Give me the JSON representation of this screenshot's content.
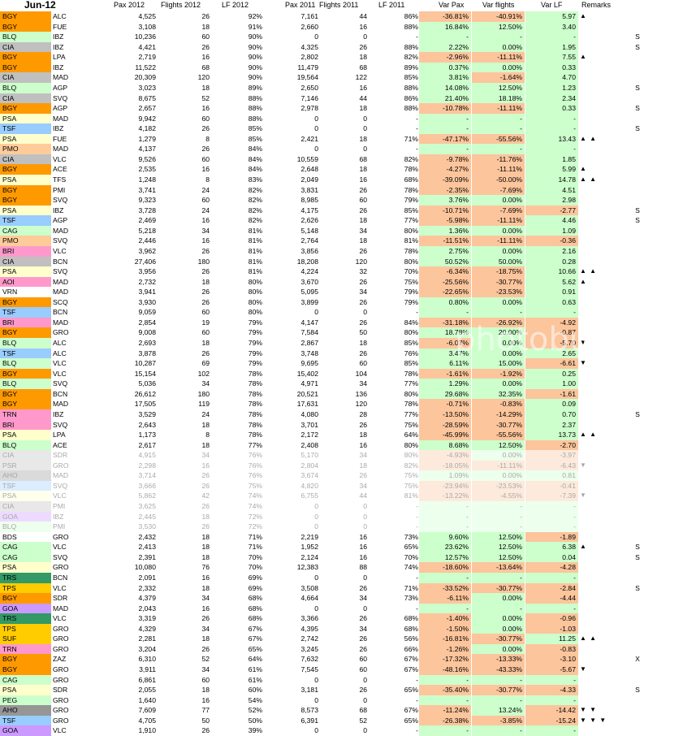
{
  "header": {
    "title": "Jun-12",
    "columns": [
      "Pax 2012",
      "Flights 2012",
      "LF 2012",
      "Pax 2011",
      "Flights 2011",
      "LF 2011",
      "Var Pax",
      "Var flights",
      "Var LF",
      "Remarks"
    ]
  },
  "colors": {
    "BGY": "#ff9900",
    "CIA": "#c0c0c0",
    "BLQ": "#ccffcc",
    "PSA": "#ffffcc",
    "TSF": "#99ccff",
    "PMO": "#ffcc99",
    "CAG": "#ccffcc",
    "BRI": "#ff99cc",
    "AOI": "#ff99cc",
    "VRN": "#ffffff",
    "TRN": "#ff99cc",
    "PSR": "#c0c0c0",
    "AHO": "#969696",
    "GOA": "#cc99ff",
    "BDS": "#ffffff",
    "TRS": "#339966",
    "TPS": "#ffcc00",
    "SUF": "#ffcc00",
    "PEG": "#ccffcc"
  },
  "rows": [
    [
      "BGY",
      "ALC",
      "4,525",
      "26",
      "92%",
      "7,161",
      "44",
      "86%",
      "-36.81%",
      "-40.91%",
      "5.97",
      "▲",
      ""
    ],
    [
      "BGY",
      "FUE",
      "3,108",
      "18",
      "91%",
      "2,660",
      "16",
      "88%",
      "16.84%",
      "12.50%",
      "3.40",
      "",
      ""
    ],
    [
      "BLQ",
      "IBZ",
      "10,236",
      "60",
      "90%",
      "0",
      "0",
      "-",
      "-",
      "-",
      "-",
      "",
      "S"
    ],
    [
      "CIA",
      "IBZ",
      "4,421",
      "26",
      "90%",
      "4,325",
      "26",
      "88%",
      "2.22%",
      "0.00%",
      "1.95",
      "",
      "S"
    ],
    [
      "BGY",
      "LPA",
      "2,719",
      "16",
      "90%",
      "2,802",
      "18",
      "82%",
      "-2.96%",
      "-11.11%",
      "7.55",
      "▲",
      ""
    ],
    [
      "BGY",
      "IBZ",
      "11,522",
      "68",
      "90%",
      "11,479",
      "68",
      "89%",
      "0.37%",
      "0.00%",
      "0.33",
      "",
      ""
    ],
    [
      "CIA",
      "MAD",
      "20,309",
      "120",
      "90%",
      "19,564",
      "122",
      "85%",
      "3.81%",
      "-1.64%",
      "4.70",
      "",
      ""
    ],
    [
      "BLQ",
      "AGP",
      "3,023",
      "18",
      "89%",
      "2,650",
      "16",
      "88%",
      "14.08%",
      "12.50%",
      "1.23",
      "",
      "S"
    ],
    [
      "CIA",
      "SVQ",
      "8,675",
      "52",
      "88%",
      "7,146",
      "44",
      "86%",
      "21.40%",
      "18.18%",
      "2.34",
      "",
      ""
    ],
    [
      "BGY",
      "AGP",
      "2,657",
      "16",
      "88%",
      "2,978",
      "18",
      "88%",
      "-10.78%",
      "-11.11%",
      "0.33",
      "",
      "S"
    ],
    [
      "PSA",
      "MAD",
      "9,942",
      "60",
      "88%",
      "0",
      "0",
      "-",
      "-",
      "-",
      "-",
      "",
      ""
    ],
    [
      "TSF",
      "IBZ",
      "4,182",
      "26",
      "85%",
      "0",
      "0",
      "-",
      "-",
      "-",
      "-",
      "",
      "S"
    ],
    [
      "PSA",
      "FUE",
      "1,279",
      "8",
      "85%",
      "2,421",
      "18",
      "71%",
      "-47.17%",
      "-55.56%",
      "13.43",
      "▲ ▲",
      ""
    ],
    [
      "PMO",
      "MAD",
      "4,137",
      "26",
      "84%",
      "0",
      "0",
      "-",
      "-",
      "-",
      "-",
      "",
      ""
    ],
    [
      "CIA",
      "VLC",
      "9,526",
      "60",
      "84%",
      "10,559",
      "68",
      "82%",
      "-9.78%",
      "-11.76%",
      "1.85",
      "",
      ""
    ],
    [
      "BGY",
      "ACE",
      "2,535",
      "16",
      "84%",
      "2,648",
      "18",
      "78%",
      "-4.27%",
      "-11.11%",
      "5.99",
      "▲",
      ""
    ],
    [
      "PSA",
      "TFS",
      "1,248",
      "8",
      "83%",
      "2,049",
      "16",
      "68%",
      "-39.09%",
      "-50.00%",
      "14.78",
      "▲ ▲",
      ""
    ],
    [
      "BGY",
      "PMI",
      "3,741",
      "24",
      "82%",
      "3,831",
      "26",
      "78%",
      "-2.35%",
      "-7.69%",
      "4.51",
      "",
      ""
    ],
    [
      "BGY",
      "SVQ",
      "9,323",
      "60",
      "82%",
      "8,985",
      "60",
      "79%",
      "3.76%",
      "0.00%",
      "2.98",
      "",
      ""
    ],
    [
      "PSA",
      "IBZ",
      "3,728",
      "24",
      "82%",
      "4,175",
      "26",
      "85%",
      "-10.71%",
      "-7.69%",
      "-2.77",
      "",
      "S"
    ],
    [
      "TSF",
      "AGP",
      "2,469",
      "16",
      "82%",
      "2,626",
      "18",
      "77%",
      "-5.98%",
      "-11.11%",
      "4.46",
      "",
      "S"
    ],
    [
      "CAG",
      "MAD",
      "5,218",
      "34",
      "81%",
      "5,148",
      "34",
      "80%",
      "1.36%",
      "0.00%",
      "1.09",
      "",
      ""
    ],
    [
      "PMO",
      "SVQ",
      "2,446",
      "16",
      "81%",
      "2,764",
      "18",
      "81%",
      "-11.51%",
      "-11.11%",
      "-0.36",
      "",
      ""
    ],
    [
      "BRI",
      "VLC",
      "3,962",
      "26",
      "81%",
      "3,856",
      "26",
      "78%",
      "2.75%",
      "0.00%",
      "2.16",
      "",
      ""
    ],
    [
      "CIA",
      "BCN",
      "27,406",
      "180",
      "81%",
      "18,208",
      "120",
      "80%",
      "50.52%",
      "50.00%",
      "0.28",
      "",
      ""
    ],
    [
      "PSA",
      "SVQ",
      "3,956",
      "26",
      "81%",
      "4,224",
      "32",
      "70%",
      "-6.34%",
      "-18.75%",
      "10.66",
      "▲ ▲",
      ""
    ],
    [
      "AOI",
      "MAD",
      "2,732",
      "18",
      "80%",
      "3,670",
      "26",
      "75%",
      "-25.56%",
      "-30.77%",
      "5.62",
      "▲",
      ""
    ],
    [
      "VRN",
      "MAD",
      "3,941",
      "26",
      "80%",
      "5,095",
      "34",
      "79%",
      "-22.65%",
      "-23.53%",
      "0.91",
      "",
      ""
    ],
    [
      "BGY",
      "SCQ",
      "3,930",
      "26",
      "80%",
      "3,899",
      "26",
      "79%",
      "0.80%",
      "0.00%",
      "0.63",
      "",
      ""
    ],
    [
      "TSF",
      "BCN",
      "9,059",
      "60",
      "80%",
      "0",
      "0",
      "-",
      "-",
      "-",
      "-",
      "",
      ""
    ],
    [
      "BRI",
      "MAD",
      "2,854",
      "19",
      "79%",
      "4,147",
      "26",
      "84%",
      "-31.18%",
      "-26.92%",
      "-4.92",
      "",
      ""
    ],
    [
      "BGY",
      "GRO",
      "9,008",
      "60",
      "79%",
      "7,584",
      "50",
      "80%",
      "18.78%",
      "20.00%",
      "-0.87",
      "",
      ""
    ],
    [
      "BLQ",
      "ALC",
      "2,693",
      "18",
      "79%",
      "2,867",
      "18",
      "85%",
      "-6.07%",
      "0.00%",
      "-5.70",
      "▼",
      ""
    ],
    [
      "TSF",
      "ALC",
      "3,878",
      "26",
      "79%",
      "3,748",
      "26",
      "76%",
      "3.47%",
      "0.00%",
      "2.65",
      "",
      ""
    ],
    [
      "BLQ",
      "VLC",
      "10,287",
      "69",
      "79%",
      "9,695",
      "60",
      "85%",
      "6.11%",
      "15.00%",
      "-6.61",
      "▼",
      ""
    ],
    [
      "BGY",
      "VLC",
      "15,154",
      "102",
      "78%",
      "15,402",
      "104",
      "78%",
      "-1.61%",
      "-1.92%",
      "0.25",
      "",
      ""
    ],
    [
      "BLQ",
      "SVQ",
      "5,036",
      "34",
      "78%",
      "4,971",
      "34",
      "77%",
      "1.29%",
      "0.00%",
      "1.00",
      "",
      ""
    ],
    [
      "BGY",
      "BCN",
      "26,612",
      "180",
      "78%",
      "20,521",
      "136",
      "80%",
      "29.68%",
      "32.35%",
      "-1.61",
      "",
      ""
    ],
    [
      "BGY",
      "MAD",
      "17,505",
      "119",
      "78%",
      "17,631",
      "120",
      "78%",
      "-0.71%",
      "-0.83%",
      "0.09",
      "",
      ""
    ],
    [
      "TRN",
      "IBZ",
      "3,529",
      "24",
      "78%",
      "4,080",
      "28",
      "77%",
      "-13.50%",
      "-14.29%",
      "0.70",
      "",
      "S"
    ],
    [
      "BRI",
      "SVQ",
      "2,643",
      "18",
      "78%",
      "3,701",
      "26",
      "75%",
      "-28.59%",
      "-30.77%",
      "2.37",
      "",
      ""
    ],
    [
      "PSA",
      "LPA",
      "1,173",
      "8",
      "78%",
      "2,172",
      "18",
      "64%",
      "-45.99%",
      "-55.56%",
      "13.73",
      "▲ ▲",
      ""
    ],
    [
      "BLQ",
      "ACE",
      "2,617",
      "18",
      "77%",
      "2,408",
      "16",
      "80%",
      "8.68%",
      "12.50%",
      "-2.70",
      "",
      ""
    ],
    [
      "CIA",
      "SDR",
      "4,915",
      "34",
      "76%",
      "5,170",
      "34",
      "80%",
      "-4.93%",
      "0.00%",
      "-3.97",
      "",
      ""
    ],
    [
      "PSR",
      "GRO",
      "2,298",
      "16",
      "76%",
      "2,804",
      "18",
      "82%",
      "-18.05%",
      "-11.11%",
      "-6.43",
      "▼",
      ""
    ],
    [
      "AHO",
      "MAD",
      "3,714",
      "26",
      "76%",
      "3,674",
      "26",
      "75%",
      "1.09%",
      "0.00%",
      "0.81",
      "",
      ""
    ],
    [
      "TSF",
      "SVQ",
      "3,666",
      "26",
      "75%",
      "4,820",
      "34",
      "75%",
      "-23.94%",
      "-23.53%",
      "-0.41",
      "",
      ""
    ],
    [
      "PSA",
      "VLC",
      "5,862",
      "42",
      "74%",
      "6,755",
      "44",
      "81%",
      "-13.22%",
      "-4.55%",
      "-7.39",
      "▼",
      ""
    ],
    [
      "CIA",
      "PMI",
      "3,625",
      "26",
      "74%",
      "0",
      "0",
      "-",
      "-",
      "-",
      "-",
      "",
      ""
    ],
    [
      "GOA",
      "IBZ",
      "2,445",
      "18",
      "72%",
      "0",
      "0",
      "-",
      "-",
      "-",
      "-",
      "",
      ""
    ],
    [
      "BLQ",
      "PMI",
      "3,530",
      "26",
      "72%",
      "0",
      "0",
      "-",
      "-",
      "-",
      "-",
      "",
      ""
    ],
    [
      "BDS",
      "GRO",
      "2,432",
      "18",
      "71%",
      "2,219",
      "16",
      "73%",
      "9.60%",
      "12.50%",
      "-1.89",
      "",
      ""
    ],
    [
      "CAG",
      "VLC",
      "2,413",
      "18",
      "71%",
      "1,952",
      "16",
      "65%",
      "23.62%",
      "12.50%",
      "6.38",
      "▲",
      "S"
    ],
    [
      "CAG",
      "SVQ",
      "2,391",
      "18",
      "70%",
      "2,124",
      "16",
      "70%",
      "12.57%",
      "12.50%",
      "0.04",
      "",
      "S"
    ],
    [
      "PSA",
      "GRO",
      "10,080",
      "76",
      "70%",
      "12,383",
      "88",
      "74%",
      "-18.60%",
      "-13.64%",
      "-4.28",
      "",
      ""
    ],
    [
      "TRS",
      "BCN",
      "2,091",
      "16",
      "69%",
      "0",
      "0",
      "-",
      "-",
      "-",
      "-",
      "",
      ""
    ],
    [
      "TPS",
      "VLC",
      "2,332",
      "18",
      "69%",
      "3,508",
      "26",
      "71%",
      "-33.52%",
      "-30.77%",
      "-2.84",
      "",
      "S"
    ],
    [
      "BGY",
      "SDR",
      "4,379",
      "34",
      "68%",
      "4,664",
      "34",
      "73%",
      "-6.11%",
      "0.00%",
      "-4.44",
      "",
      ""
    ],
    [
      "GOA",
      "MAD",
      "2,043",
      "16",
      "68%",
      "0",
      "0",
      "-",
      "-",
      "-",
      "-",
      "",
      ""
    ],
    [
      "TRS",
      "VLC",
      "3,319",
      "26",
      "68%",
      "3,366",
      "26",
      "68%",
      "-1.40%",
      "0.00%",
      "-0.96",
      "",
      ""
    ],
    [
      "TPS",
      "GRO",
      "4,329",
      "34",
      "67%",
      "4,395",
      "34",
      "68%",
      "-1.50%",
      "0.00%",
      "-1.03",
      "",
      ""
    ],
    [
      "SUF",
      "GRO",
      "2,281",
      "18",
      "67%",
      "2,742",
      "26",
      "56%",
      "-16.81%",
      "-30.77%",
      "11.25",
      "▲ ▲",
      ""
    ],
    [
      "TRN",
      "GRO",
      "3,204",
      "26",
      "65%",
      "3,245",
      "26",
      "66%",
      "-1.26%",
      "0.00%",
      "-0.83",
      "",
      ""
    ],
    [
      "BGY",
      "ZAZ",
      "6,310",
      "52",
      "64%",
      "7,632",
      "60",
      "67%",
      "-17.32%",
      "-13.33%",
      "-3.10",
      "",
      "X"
    ],
    [
      "BGY",
      "GRO",
      "3,911",
      "34",
      "61%",
      "7,545",
      "60",
      "67%",
      "-48.16%",
      "-43.33%",
      "-5.67",
      "▼",
      ""
    ],
    [
      "CAG",
      "GRO",
      "6,861",
      "60",
      "61%",
      "0",
      "0",
      "-",
      "-",
      "-",
      "-",
      "",
      ""
    ],
    [
      "PSA",
      "SDR",
      "2,055",
      "18",
      "60%",
      "3,181",
      "26",
      "65%",
      "-35.40%",
      "-30.77%",
      "-4.33",
      "",
      "S"
    ],
    [
      "PEG",
      "GRO",
      "1,640",
      "16",
      "54%",
      "0",
      "0",
      "-",
      "-",
      "-",
      "-",
      "",
      ""
    ],
    [
      "AHO",
      "GRO",
      "7,609",
      "77",
      "52%",
      "8,573",
      "68",
      "67%",
      "-11.24%",
      "13.24%",
      "-14.42",
      "▼ ▼",
      ""
    ],
    [
      "TSF",
      "GRO",
      "4,705",
      "50",
      "50%",
      "6,391",
      "52",
      "65%",
      "-26.38%",
      "-3.85%",
      "-15.24",
      "▼ ▼ ▼",
      ""
    ],
    [
      "GOA",
      "VLC",
      "1,910",
      "26",
      "39%",
      "0",
      "0",
      "-",
      "-",
      "-",
      "-",
      "",
      ""
    ]
  ]
}
